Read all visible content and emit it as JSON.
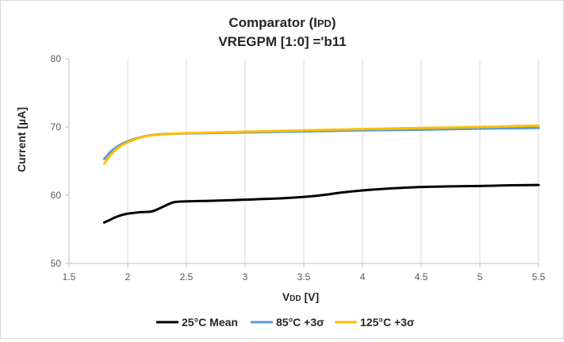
{
  "chart_data": {
    "type": "line",
    "title_line1_prefix": "Comparator (I",
    "title_line1_sub": "PD",
    "title_line1_suffix": ")",
    "title_line2": "VREGPM [1:0] ='b11",
    "xlabel_main": "V",
    "xlabel_sub": "DD",
    "xlabel_unit": " [V]",
    "ylabel": "Current [µA]",
    "xlim": [
      1.5,
      5.5
    ],
    "ylim": [
      50,
      80
    ],
    "xticks": [
      1.5,
      2,
      2.5,
      3,
      3.5,
      4,
      4.5,
      5,
      5.5
    ],
    "xtick_labels": [
      "1.5",
      "2",
      "2.5",
      "3",
      "3.5",
      "4",
      "4.5",
      "5",
      "5.5"
    ],
    "yticks": [
      50,
      60,
      70,
      80
    ],
    "ytick_labels": [
      "50",
      "60",
      "70",
      "80"
    ],
    "grid": "vertical",
    "legend_position": "bottom",
    "series": [
      {
        "name": "25°C Mean",
        "color": "#000000",
        "points": [
          [
            1.8,
            56.0
          ],
          [
            1.85,
            56.4
          ],
          [
            1.9,
            56.8
          ],
          [
            1.95,
            57.1
          ],
          [
            2.0,
            57.3
          ],
          [
            2.05,
            57.4
          ],
          [
            2.1,
            57.5
          ],
          [
            2.15,
            57.55
          ],
          [
            2.2,
            57.6
          ],
          [
            2.25,
            57.9
          ],
          [
            2.3,
            58.3
          ],
          [
            2.35,
            58.7
          ],
          [
            2.4,
            59.0
          ],
          [
            2.5,
            59.1
          ],
          [
            2.75,
            59.2
          ],
          [
            3.0,
            59.35
          ],
          [
            3.25,
            59.5
          ],
          [
            3.5,
            59.75
          ],
          [
            3.6,
            59.9
          ],
          [
            3.7,
            60.1
          ],
          [
            3.8,
            60.35
          ],
          [
            4.0,
            60.7
          ],
          [
            4.25,
            61.0
          ],
          [
            4.5,
            61.2
          ],
          [
            4.75,
            61.3
          ],
          [
            5.0,
            61.35
          ],
          [
            5.25,
            61.45
          ],
          [
            5.5,
            61.5
          ]
        ]
      },
      {
        "name": "85°C +3σ",
        "color": "#5b9bd5",
        "points": [
          [
            1.8,
            65.3
          ],
          [
            1.85,
            66.3
          ],
          [
            1.9,
            67.0
          ],
          [
            1.95,
            67.5
          ],
          [
            2.0,
            67.9
          ],
          [
            2.05,
            68.2
          ],
          [
            2.1,
            68.45
          ],
          [
            2.15,
            68.65
          ],
          [
            2.2,
            68.8
          ],
          [
            2.3,
            68.95
          ],
          [
            2.5,
            69.05
          ],
          [
            3.0,
            69.2
          ],
          [
            3.5,
            69.35
          ],
          [
            4.0,
            69.5
          ],
          [
            4.5,
            69.6
          ],
          [
            5.0,
            69.75
          ],
          [
            5.5,
            69.85
          ]
        ]
      },
      {
        "name": "125°C +3σ",
        "color": "#ffc000",
        "points": [
          [
            1.8,
            64.6
          ],
          [
            1.85,
            65.8
          ],
          [
            1.9,
            66.7
          ],
          [
            1.95,
            67.3
          ],
          [
            2.0,
            67.75
          ],
          [
            2.05,
            68.1
          ],
          [
            2.1,
            68.4
          ],
          [
            2.15,
            68.6
          ],
          [
            2.2,
            68.75
          ],
          [
            2.3,
            68.9
          ],
          [
            2.5,
            69.1
          ],
          [
            3.0,
            69.3
          ],
          [
            3.5,
            69.5
          ],
          [
            4.0,
            69.7
          ],
          [
            4.5,
            69.85
          ],
          [
            5.0,
            70.0
          ],
          [
            5.5,
            70.2
          ]
        ]
      }
    ]
  }
}
